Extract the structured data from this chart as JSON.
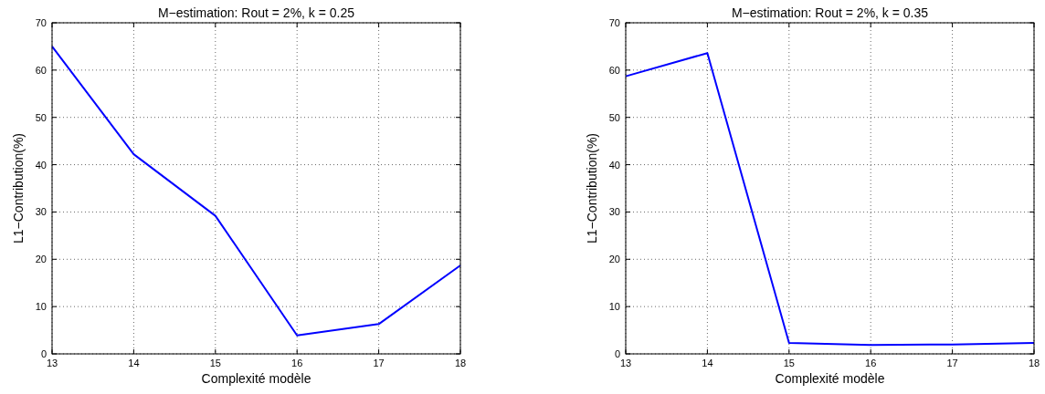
{
  "chart_data": [
    {
      "type": "line",
      "title": "M−estimation: Rout = 2%, k = 0.25",
      "xlabel": "Complexité modèle",
      "ylabel": "L1−Contribution(%)",
      "x": [
        13,
        14,
        15,
        16,
        17,
        18
      ],
      "series": [
        {
          "color": "#0000ff",
          "values": [
            65,
            42.2,
            29.2,
            3.9,
            6.3,
            18.7
          ]
        }
      ],
      "xlim": [
        13,
        18
      ],
      "ylim": [
        0,
        70
      ],
      "xticks": [
        13,
        14,
        15,
        16,
        17,
        18
      ],
      "yticks": [
        0,
        10,
        20,
        30,
        40,
        50,
        60,
        70
      ],
      "grid": true
    },
    {
      "type": "line",
      "title": "M−estimation: Rout = 2%, k = 0.35",
      "xlabel": "Complexité modèle",
      "ylabel": "L1−Contribution(%)",
      "x": [
        13,
        14,
        15,
        16,
        17,
        18
      ],
      "series": [
        {
          "color": "#0000ff",
          "values": [
            58.7,
            63.6,
            2.3,
            1.9,
            2,
            2.3
          ]
        }
      ],
      "xlim": [
        13,
        18
      ],
      "ylim": [
        0,
        70
      ],
      "xticks": [
        13,
        14,
        15,
        16,
        17,
        18
      ],
      "yticks": [
        0,
        10,
        20,
        30,
        40,
        50,
        60,
        70
      ],
      "grid": true
    }
  ]
}
